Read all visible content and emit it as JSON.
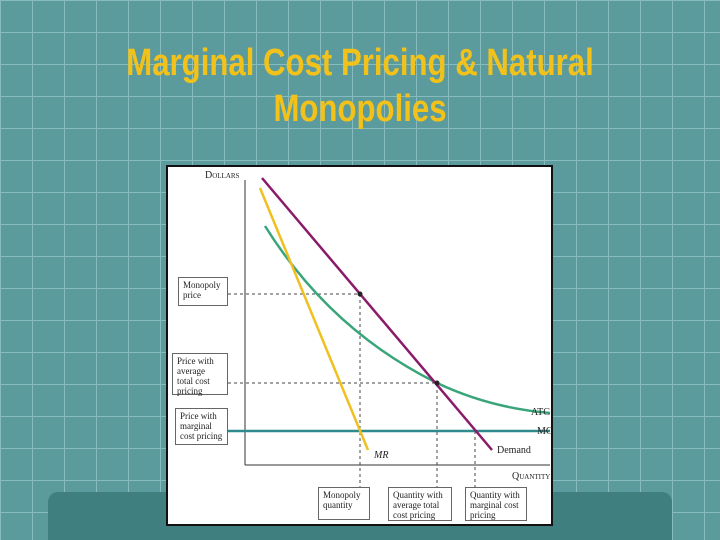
{
  "header": {
    "title_lines": [
      "Marginal Cost Pricing & Natural",
      "Monopolies"
    ]
  },
  "figure": {
    "y_axis_label": "Dollars",
    "x_axis_label": "Quantity",
    "curve_labels": {
      "atc": "ATC",
      "mc": "MC",
      "demand": "Demand",
      "mr": "MR"
    },
    "price_boxes": [
      "Monopoly price",
      "Price with average total cost pricing",
      "Price with marginal cost pricing"
    ],
    "quantity_boxes": [
      "Monopoly quantity",
      "Quantity with average total cost pricing",
      "Quantity with marginal cost pricing"
    ]
  }
}
